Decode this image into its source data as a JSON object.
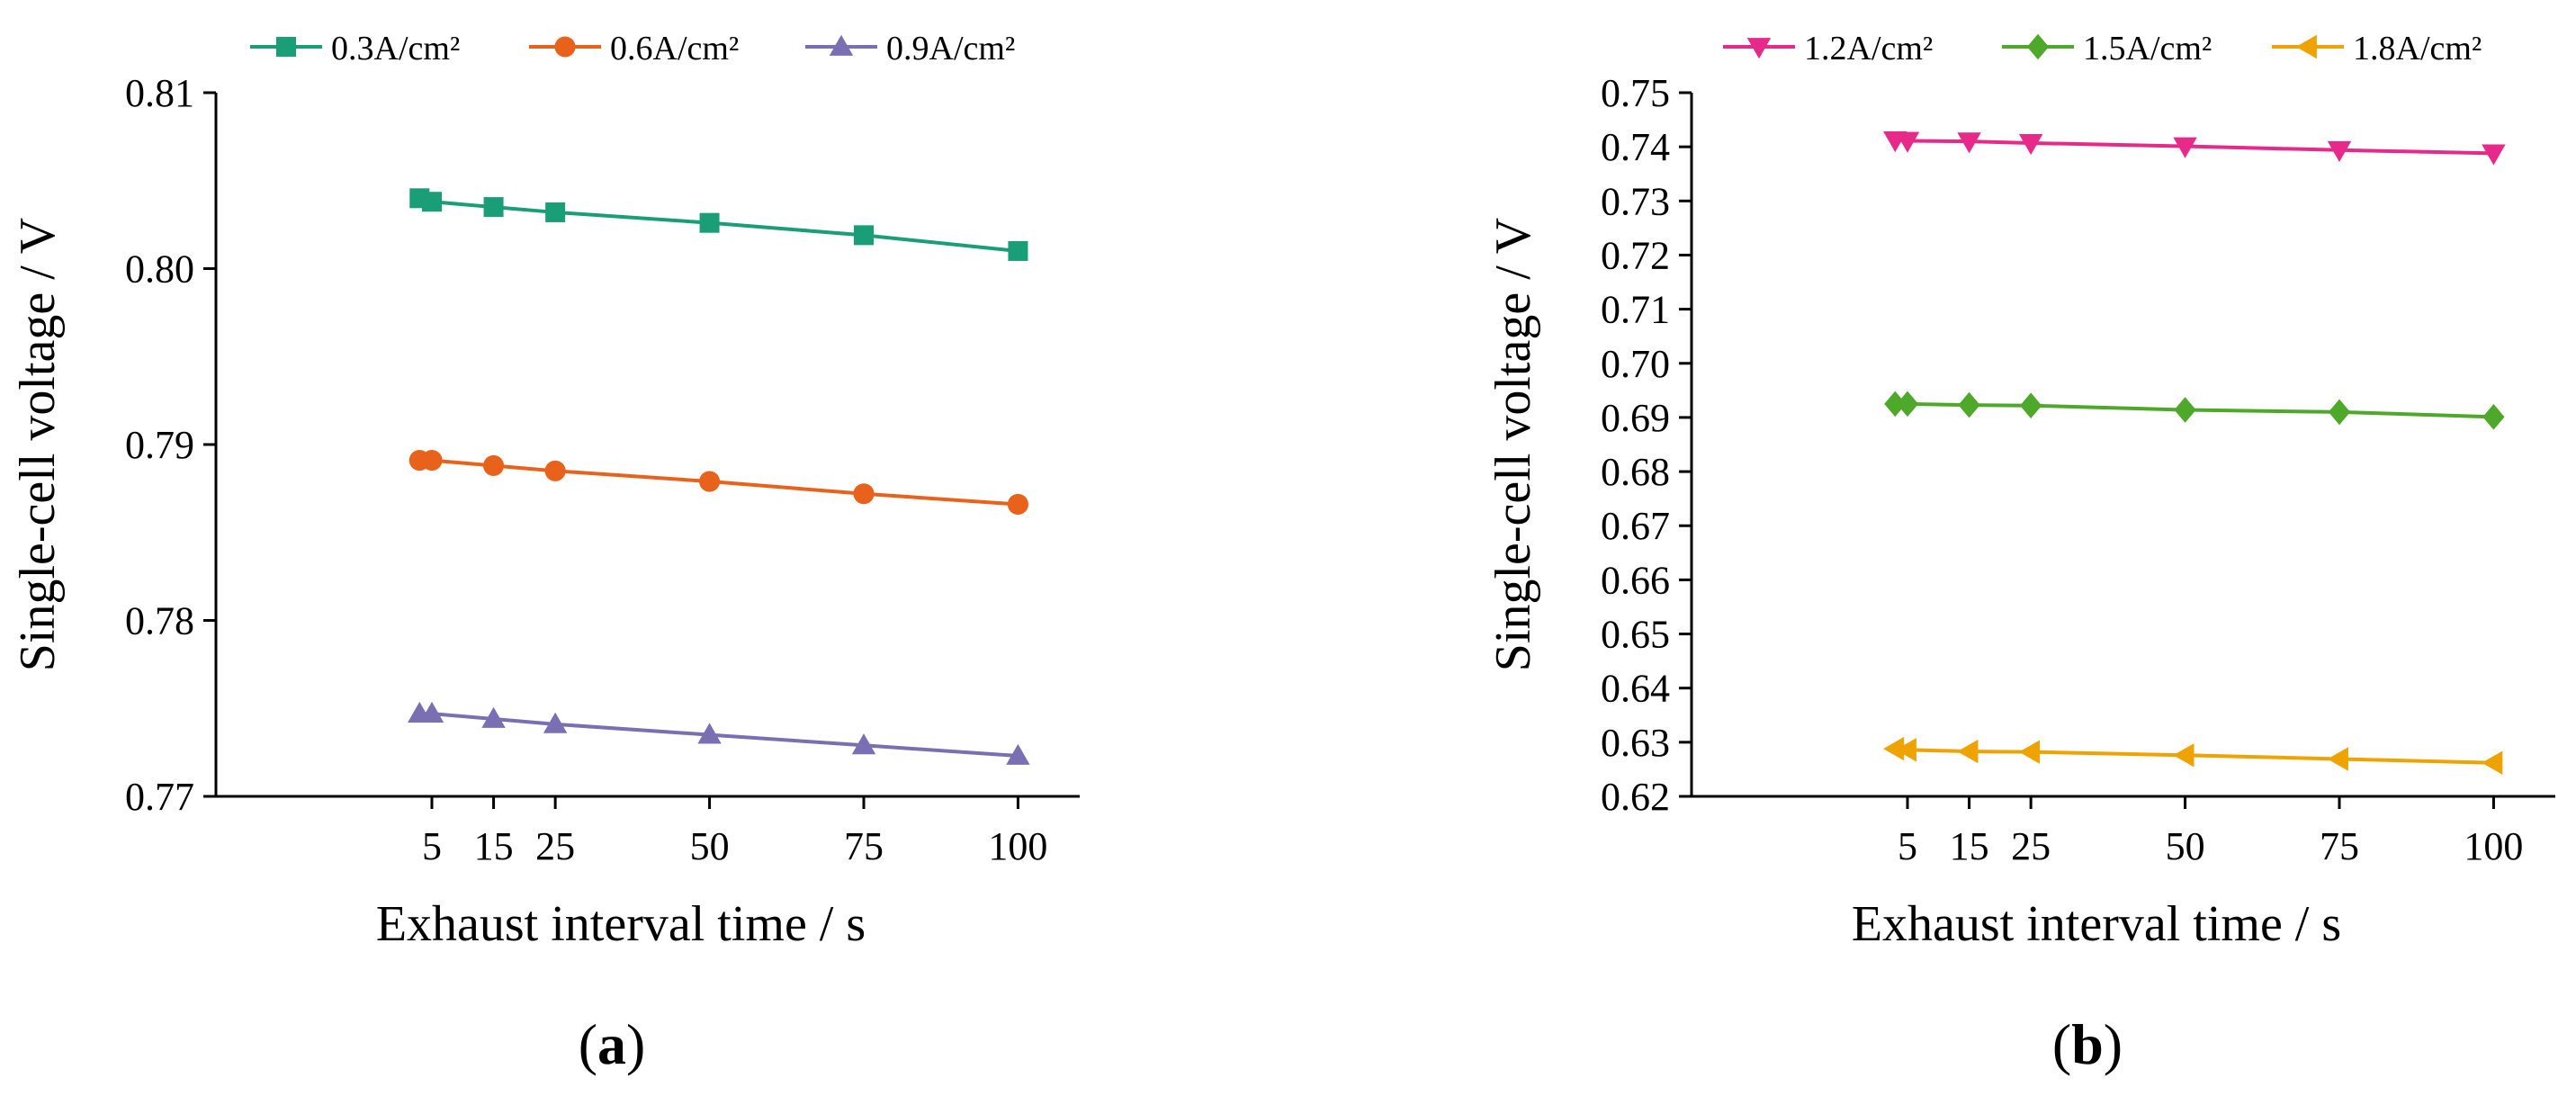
{
  "chart_data": [
    {
      "type": "line",
      "panel_label": "a",
      "xlabel": "Exhaust interval time / s",
      "ylabel": "Single-cell voltage / V",
      "x_ticks": [
        5,
        15,
        25,
        50,
        75,
        100
      ],
      "x_range": [
        -30,
        110
      ],
      "ylim": [
        0.77,
        0.81
      ],
      "y_ticks": [
        "0.77",
        "0.78",
        "0.79",
        "0.80",
        "0.81"
      ],
      "grid": false,
      "legend_position": "top",
      "x": [
        3,
        5,
        15,
        25,
        50,
        75,
        100
      ],
      "series": [
        {
          "name": "0.3A/cm²",
          "color": "#1a9e77",
          "marker": "square",
          "values": [
            0.804,
            0.8038,
            0.8035,
            0.8032,
            0.8026,
            0.8019,
            0.801
          ]
        },
        {
          "name": "0.6A/cm²",
          "color": "#e9621b",
          "marker": "circle",
          "values": [
            0.7891,
            0.7891,
            0.7888,
            0.7885,
            0.7879,
            0.7872,
            0.7866
          ]
        },
        {
          "name": "0.9A/cm²",
          "color": "#7b6fb3",
          "marker": "triangle-up",
          "values": [
            0.7747,
            0.7747,
            0.7744,
            0.7741,
            0.7735,
            0.7729,
            0.7723
          ]
        }
      ]
    },
    {
      "type": "line",
      "panel_label": "b",
      "xlabel": "Exhaust interval time / s",
      "ylabel": "Single-cell voltage / V",
      "x_ticks": [
        5,
        15,
        25,
        50,
        75,
        100
      ],
      "x_range": [
        -30,
        110
      ],
      "ylim": [
        0.62,
        0.75
      ],
      "y_ticks": [
        "0.62",
        "0.63",
        "0.64",
        "0.65",
        "0.66",
        "0.67",
        "0.68",
        "0.69",
        "0.70",
        "0.71",
        "0.72",
        "0.73",
        "0.74",
        "0.75"
      ],
      "grid": false,
      "legend_position": "top",
      "x": [
        3,
        5,
        15,
        25,
        50,
        75,
        100
      ],
      "series": [
        {
          "name": "1.2A/cm²",
          "color": "#e7298a",
          "marker": "triangle-down",
          "values": [
            0.7412,
            0.7411,
            0.741,
            0.7407,
            0.7401,
            0.7394,
            0.7388
          ]
        },
        {
          "name": "1.5A/cm²",
          "color": "#4ea82a",
          "marker": "diamond",
          "values": [
            0.6925,
            0.6925,
            0.6923,
            0.6922,
            0.6914,
            0.691,
            0.6901
          ]
        },
        {
          "name": "1.8A/cm²",
          "color": "#eea300",
          "marker": "triangle-left",
          "values": [
            0.6288,
            0.6286,
            0.6283,
            0.6282,
            0.6276,
            0.6269,
            0.6262
          ]
        }
      ]
    }
  ]
}
